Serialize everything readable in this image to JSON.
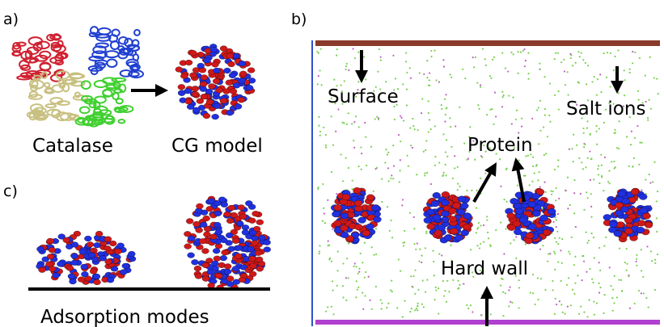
{
  "panel_a": {
    "label": "a)",
    "protein": "Catalase",
    "model": "CG model"
  },
  "panel_b": {
    "label": "b)",
    "surface": "Surface",
    "salt": "Salt ions",
    "protein": "Protein",
    "wall": "Hard wall"
  },
  "panel_c": {
    "label": "c)",
    "caption": "Adsorption modes"
  }
}
